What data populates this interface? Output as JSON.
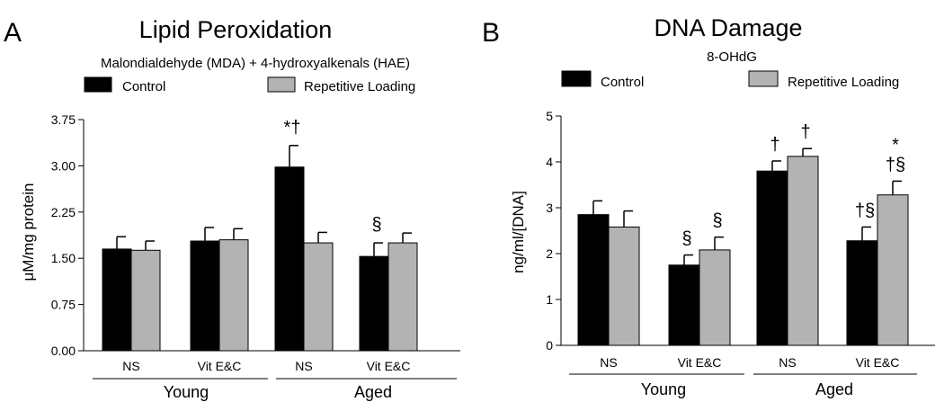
{
  "colors": {
    "control": "#000000",
    "repetitive_loading": "#b3b3b3"
  },
  "chart_data": [
    {
      "type": "bar",
      "panel_label": "A",
      "title": "Lipid Peroxidation",
      "subtitle": "Malondialdehyde (MDA) + 4-hydroxyalkenals (HAE)",
      "ylabel": "μM/mg protein",
      "xlabel": "",
      "ylim": [
        0,
        3.75
      ],
      "yticks": [
        "0.00",
        "0.75",
        "1.50",
        "2.25",
        "3.00",
        "3.75"
      ],
      "legend": [
        "Control",
        "Repetitive Loading"
      ],
      "categories": [
        "NS",
        "Vit E&C",
        "NS",
        "Vit E&C"
      ],
      "groups": [
        {
          "label": "Young",
          "categories": [
            0,
            1
          ]
        },
        {
          "label": "Aged",
          "categories": [
            2,
            3
          ]
        }
      ],
      "series": [
        {
          "name": "Control",
          "values": [
            1.65,
            1.78,
            2.98,
            1.53
          ],
          "errors": [
            0.2,
            0.22,
            0.35,
            0.22
          ]
        },
        {
          "name": "Repetitive Loading",
          "values": [
            1.63,
            1.8,
            1.75,
            1.75
          ],
          "errors": [
            0.15,
            0.18,
            0.17,
            0.16
          ]
        }
      ],
      "annotations": [
        {
          "category": 2,
          "series": 0,
          "text": "*†"
        },
        {
          "category": 3,
          "series": 0,
          "text": "§"
        }
      ]
    },
    {
      "type": "bar",
      "panel_label": "B",
      "title": "DNA Damage",
      "subtitle": "8-OHdG",
      "ylabel": "ng/ml/[DNA]",
      "xlabel": "",
      "ylim": [
        0,
        5
      ],
      "yticks": [
        "0",
        "1",
        "2",
        "3",
        "4",
        "5"
      ],
      "legend": [
        "Control",
        "Repetitive Loading"
      ],
      "categories": [
        "NS",
        "Vit E&C",
        "NS",
        "Vit E&C"
      ],
      "groups": [
        {
          "label": "Young",
          "categories": [
            0,
            1
          ]
        },
        {
          "label": "Aged",
          "categories": [
            2,
            3
          ]
        }
      ],
      "series": [
        {
          "name": "Control",
          "values": [
            2.85,
            1.75,
            3.8,
            2.28
          ],
          "errors": [
            0.3,
            0.22,
            0.22,
            0.3
          ]
        },
        {
          "name": "Repetitive Loading",
          "values": [
            2.58,
            2.08,
            4.12,
            3.28
          ],
          "errors": [
            0.35,
            0.28,
            0.17,
            0.3
          ]
        }
      ],
      "annotations": [
        {
          "category": 1,
          "series": 0,
          "text": "§"
        },
        {
          "category": 1,
          "series": 1,
          "text": "§"
        },
        {
          "category": 2,
          "series": 0,
          "text": "†"
        },
        {
          "category": 2,
          "series": 1,
          "text": "†"
        },
        {
          "category": 3,
          "series": 0,
          "text": "†§"
        },
        {
          "category": 3,
          "series": 1,
          "text": "*"
        },
        {
          "category": 3,
          "series": 1,
          "text": "†§"
        }
      ]
    }
  ]
}
